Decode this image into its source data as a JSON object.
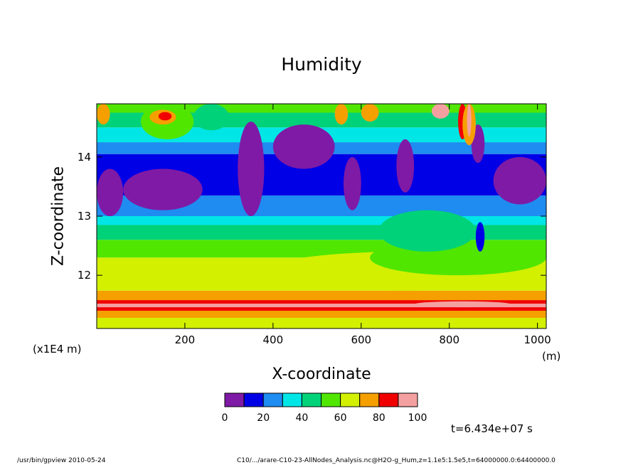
{
  "chart_data": {
    "type": "heatmap",
    "title": "Humidity",
    "xlabel": "X-coordinate",
    "ylabel": "Z-coordinate",
    "x_unit": "(m)",
    "y_unit": "(x1E4 m)",
    "xlim": [
      0,
      1020
    ],
    "ylim": [
      11.1,
      14.9
    ],
    "x_ticks": [
      200,
      400,
      600,
      800,
      1000
    ],
    "y_ticks": [
      12,
      13,
      14
    ],
    "grid": false,
    "colorbar": {
      "levels": [
        0,
        10,
        20,
        30,
        40,
        50,
        60,
        70,
        80,
        90,
        100
      ],
      "tick_labels": [
        "0",
        "20",
        "40",
        "60",
        "80",
        "100"
      ],
      "colors": [
        "#7f1aa6",
        "#0000e6",
        "#1e8cf0",
        "#00e6e6",
        "#00d27a",
        "#50e600",
        "#d2f000",
        "#f5a000",
        "#f00000",
        "#f5a0a0"
      ]
    },
    "bands": [
      {
        "z0": 11.1,
        "z1": 11.28,
        "value": 65
      },
      {
        "z0": 11.28,
        "z1": 11.4,
        "value": 75
      },
      {
        "z0": 11.4,
        "z1": 11.46,
        "value": 85
      },
      {
        "z0": 11.46,
        "z1": 11.52,
        "value": 95
      },
      {
        "z0": 11.52,
        "z1": 11.58,
        "value": 85
      },
      {
        "z0": 11.58,
        "z1": 11.74,
        "value": 75
      },
      {
        "z0": 11.74,
        "z1": 12.3,
        "value": 65
      },
      {
        "z0": 12.3,
        "z1": 12.6,
        "value": 55
      },
      {
        "z0": 12.6,
        "z1": 12.85,
        "value": 45
      },
      {
        "z0": 12.85,
        "z1": 13.0,
        "value": 35
      },
      {
        "z0": 13.0,
        "z1": 13.35,
        "value": 25
      },
      {
        "z0": 13.35,
        "z1": 14.05,
        "value": 15
      },
      {
        "z0": 14.05,
        "z1": 14.25,
        "value": 25
      },
      {
        "z0": 14.25,
        "z1": 14.5,
        "value": 35
      },
      {
        "z0": 14.5,
        "z1": 14.75,
        "value": 45
      },
      {
        "z0": 14.75,
        "z1": 14.9,
        "value": 55
      }
    ],
    "regions": [
      {
        "x0": 380,
        "x1": 1020,
        "z0": 11.74,
        "z1": 12.4,
        "value": 65
      },
      {
        "x0": 620,
        "x1": 1020,
        "z0": 12.0,
        "z1": 12.6,
        "value": 55
      },
      {
        "x0": 640,
        "x1": 860,
        "z0": 12.4,
        "z1": 13.1,
        "value": 45
      },
      {
        "x0": 0,
        "x1": 60,
        "z0": 13.0,
        "z1": 13.8,
        "value": 5
      },
      {
        "x0": 60,
        "x1": 240,
        "z0": 13.1,
        "z1": 13.8,
        "value": 5
      },
      {
        "x0": 320,
        "x1": 380,
        "z0": 13.0,
        "z1": 14.6,
        "value": 5
      },
      {
        "x0": 400,
        "x1": 540,
        "z0": 13.8,
        "z1": 14.55,
        "value": 5
      },
      {
        "x0": 560,
        "x1": 600,
        "z0": 13.1,
        "z1": 14.0,
        "value": 5
      },
      {
        "x0": 680,
        "x1": 720,
        "z0": 13.4,
        "z1": 14.3,
        "value": 5
      },
      {
        "x0": 850,
        "x1": 880,
        "z0": 13.9,
        "z1": 14.55,
        "value": 5
      },
      {
        "x0": 900,
        "x1": 1020,
        "z0": 13.2,
        "z1": 14.0,
        "value": 5
      },
      {
        "x0": 860,
        "x1": 880,
        "z0": 12.4,
        "z1": 12.9,
        "value": 15
      },
      {
        "x0": 100,
        "x1": 220,
        "z0": 14.3,
        "z1": 14.9,
        "value": 55
      },
      {
        "x0": 220,
        "x1": 300,
        "z0": 14.45,
        "z1": 14.9,
        "value": 45
      },
      {
        "x0": 120,
        "x1": 180,
        "z0": 14.55,
        "z1": 14.8,
        "value": 75
      },
      {
        "x0": 140,
        "x1": 170,
        "z0": 14.62,
        "z1": 14.76,
        "value": 85
      },
      {
        "x0": 0,
        "x1": 30,
        "z0": 14.55,
        "z1": 14.9,
        "value": 75
      },
      {
        "x0": 540,
        "x1": 570,
        "z0": 14.55,
        "z1": 14.9,
        "value": 75
      },
      {
        "x0": 600,
        "x1": 640,
        "z0": 14.6,
        "z1": 14.9,
        "value": 75
      },
      {
        "x0": 760,
        "x1": 800,
        "z0": 14.65,
        "z1": 14.9,
        "value": 95
      },
      {
        "x0": 820,
        "x1": 840,
        "z0": 14.3,
        "z1": 14.9,
        "value": 85
      },
      {
        "x0": 830,
        "x1": 860,
        "z0": 14.2,
        "z1": 14.9,
        "value": 75
      },
      {
        "x0": 840,
        "x1": 850,
        "z0": 14.35,
        "z1": 14.9,
        "value": 95
      },
      {
        "x0": 720,
        "x1": 940,
        "z0": 11.46,
        "z1": 11.56,
        "value": 95
      }
    ]
  },
  "time_label": "t=6.434e+07 s",
  "footer": {
    "left": "/usr/bin/gpview   2010-05-24",
    "right": "C10/.../arare-C10-23-AllNodes_Analysis.nc@H2O-g_Hum,z=1.1e5:1.5e5,t=64000000.0:64400000.0"
  }
}
